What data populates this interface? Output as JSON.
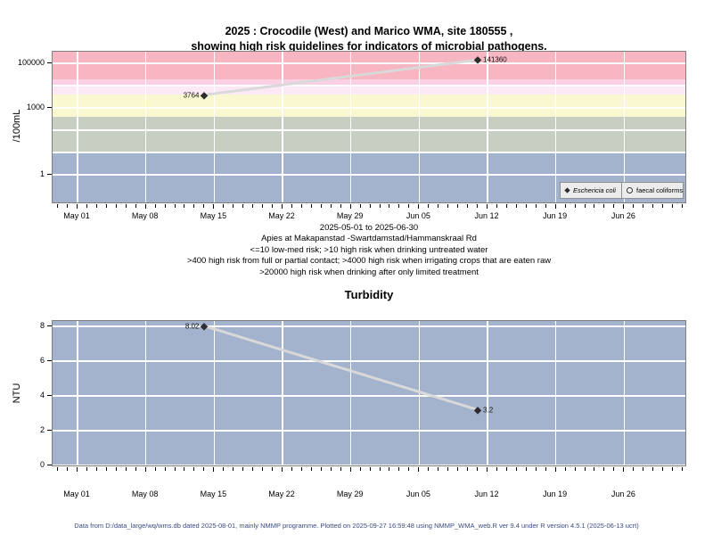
{
  "title": {
    "line1": "2025 : Crocodile (West) and Marico WMA, site 180555 ,",
    "line2": "showing high risk guidelines for indicators of microbial pathogens."
  },
  "footer": "Data from D:/data_large/wq/wms.db dated 2025-08-01, mainly NMMP programme. Plotted on 2025-09-27 16:59:48 using NMMP_WMA_web.R ver 9.4 under R version 4.5.1 (2025-06-13 ucrt)",
  "colors": {
    "plot_bg": "#a3b3cd",
    "gridline": "#ffffff",
    "series_line": "#d9d9d9",
    "marker": "#2d2d2d",
    "legend_bg": "#ececec",
    "legend_border": "#8f8f8f",
    "footer_text": "#3a4a80"
  },
  "chart_data": [
    {
      "type": "scatter",
      "name": "microbial-pathogens",
      "ylabel": "/100mL",
      "yscale": "log",
      "ylim_ticks": [
        1,
        1000,
        100000
      ],
      "y_tick_labels": [
        "1",
        "1000",
        "100000"
      ],
      "x_tick_labels": [
        "May 01",
        "May 08",
        "May 15",
        "May 22",
        "May 29",
        "Jun 05",
        "Jun 12",
        "Jun 19",
        "Jun 26"
      ],
      "x_range": "2025-05-01 to 2025-06-30",
      "series": [
        {
          "name": "Eschericia coli",
          "marker": "filled-diamond",
          "points": [
            {
              "x_approx": "May 14",
              "day_offset": 13,
              "value": 3764,
              "label": "3764",
              "label_side": "left"
            },
            {
              "x_approx": "Jun 11",
              "day_offset": 41,
              "value": 141360,
              "label": "141360",
              "label_side": "right"
            }
          ]
        },
        {
          "name": "faecal coliforms",
          "marker": "open-circle",
          "points": []
        }
      ],
      "legend": [
        {
          "symbol": "filled-diamond",
          "label": "Eschericia coli",
          "italic": true
        },
        {
          "symbol": "open-circle",
          "label": "faecal coliforms",
          "italic": false
        }
      ],
      "bands": [
        {
          "range": ">20000",
          "color": "#f7b6c2"
        },
        {
          "range": "10000-20000",
          "color": "#fbd0e5"
        },
        {
          "range": "4000-10000",
          "color": "#fde9f6"
        },
        {
          "range": "400-4000",
          "color": "#f9f8d0"
        },
        {
          "range": "10-400",
          "color": "#c6cfc1"
        },
        {
          "range": "<=10",
          "color": "#a3b3cd"
        }
      ],
      "caption_lines": [
        "2025-05-01 to 2025-06-30",
        "Apies at Makapanstad -Swartdamstad/Hammanskraal Rd",
        "<=10 low-med risk; >10 high risk when drinking untreated water",
        ">400 high risk from full or partial contact; >4000 high risk when irrigating crops that are eaten raw",
        ">20000 high risk when drinking after only limited treatment"
      ]
    },
    {
      "type": "scatter",
      "name": "turbidity",
      "title": "Turbidity",
      "ylabel": "NTU",
      "yscale": "linear",
      "ylim": [
        0,
        8.4
      ],
      "y_tick_labels": [
        "0",
        "2",
        "4",
        "6",
        "8"
      ],
      "x_tick_labels": [
        "May 01",
        "May 08",
        "May 15",
        "May 22",
        "May 29",
        "Jun 05",
        "Jun 12",
        "Jun 19",
        "Jun 26"
      ],
      "series": [
        {
          "name": "Turbidity",
          "marker": "filled-diamond",
          "points": [
            {
              "x_approx": "May 14",
              "day_offset": 13,
              "value": 8.02,
              "label": "8.02",
              "label_side": "left"
            },
            {
              "x_approx": "Jun 11",
              "day_offset": 41,
              "value": 3.2,
              "label": "3.2",
              "label_side": "right"
            }
          ]
        }
      ]
    }
  ]
}
